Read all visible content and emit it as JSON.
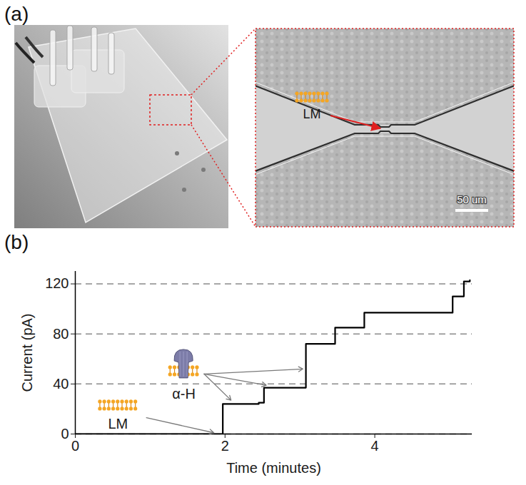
{
  "panel_a": {
    "label": "(a)",
    "membrane_label": "LM",
    "scale_bar": "50 um"
  },
  "panel_b": {
    "label": "(b)"
  },
  "chart_data": {
    "type": "step",
    "xlabel": "Time (minutes)",
    "ylabel": "Current (pA)",
    "x": [
      0,
      1.97,
      2.45,
      2.52,
      3.08,
      3.47,
      3.86,
      5.04,
      5.19,
      5.27
    ],
    "values": [
      0,
      24,
      25,
      37,
      72,
      85,
      97,
      110,
      122,
      123
    ],
    "color": "#000000",
    "xlim": [
      0,
      5.3
    ],
    "ylim": [
      0,
      130
    ],
    "xticks": [
      0,
      2,
      4
    ],
    "yticks": [
      0,
      40,
      80,
      120
    ],
    "grid": true,
    "annotations": [
      {
        "text": "LM",
        "x": 0.57,
        "y": 8,
        "arrows": [
          {
            "from": [
              0.95,
              13
            ],
            "to": [
              1.85,
              1
            ]
          }
        ]
      },
      {
        "text": "α-H",
        "x": 1.45,
        "y": 32,
        "arrows": [
          {
            "from": [
              1.72,
              48
            ],
            "to": [
              2.08,
              27
            ]
          },
          {
            "from": [
              1.72,
              48
            ],
            "to": [
              2.55,
              39
            ]
          },
          {
            "from": [
              1.72,
              48
            ],
            "to": [
              3.04,
              52
            ]
          }
        ]
      }
    ]
  }
}
